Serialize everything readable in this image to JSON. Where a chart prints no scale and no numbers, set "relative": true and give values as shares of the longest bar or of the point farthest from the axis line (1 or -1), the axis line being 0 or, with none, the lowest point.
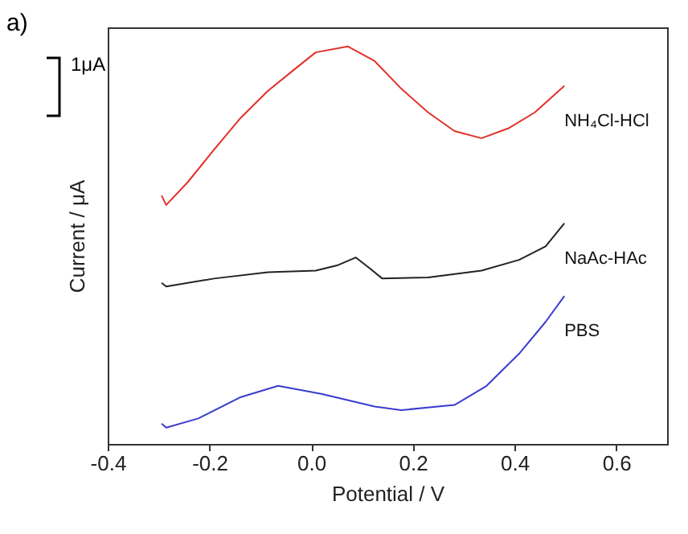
{
  "chart_data": {
    "type": "line",
    "relative": true,
    "xlabel": "Potential / V",
    "ylabel": "Current / μA",
    "annotations": [
      "a)",
      "1μA"
    ],
    "xlim": [
      -0.4,
      0.7
    ],
    "xticks": [
      -0.4,
      -0.2,
      {
        "value": 0,
        "label": "0.0"
      },
      0.2,
      0.4,
      0.6
    ],
    "grid": false,
    "legend": false,
    "series": [
      {
        "name": "NH₄Cl-HCl",
        "color": "#e2302a",
        "x": [
          -0.294,
          -0.285,
          -0.243,
          -0.191,
          -0.138,
          -0.085,
          -0.033,
          0.009,
          0.072,
          0.125,
          0.177,
          0.23,
          0.282,
          0.335,
          0.388,
          0.44,
          0.498
        ],
        "values": [
          0.625,
          0.601,
          0.658,
          0.74,
          0.821,
          0.888,
          0.942,
          0.985,
          1,
          0.963,
          0.894,
          0.834,
          0.787,
          0.769,
          0.794,
          0.834,
          0.901
        ]
      },
      {
        "name": "NaAc-HAc",
        "color": "#222222",
        "x": [
          -0.294,
          -0.285,
          -0.191,
          -0.085,
          0.009,
          0.051,
          0.088,
          0.114,
          0.14,
          0.23,
          0.335,
          0.409,
          0.461,
          0.498
        ],
        "values": [
          0.405,
          0.396,
          0.416,
          0.432,
          0.436,
          0.449,
          0.469,
          0.443,
          0.416,
          0.419,
          0.436,
          0.463,
          0.497,
          0.555
        ]
      },
      {
        "name": "PBS",
        "color": "#3b3bcf",
        "x": [
          -0.294,
          -0.285,
          -0.222,
          -0.138,
          -0.065,
          0.02,
          0.125,
          0.177,
          0.282,
          0.345,
          0.409,
          0.461,
          0.498
        ],
        "values": [
          0.051,
          0.041,
          0.064,
          0.118,
          0.146,
          0.126,
          0.094,
          0.085,
          0.098,
          0.146,
          0.227,
          0.307,
          0.372
        ]
      }
    ]
  }
}
